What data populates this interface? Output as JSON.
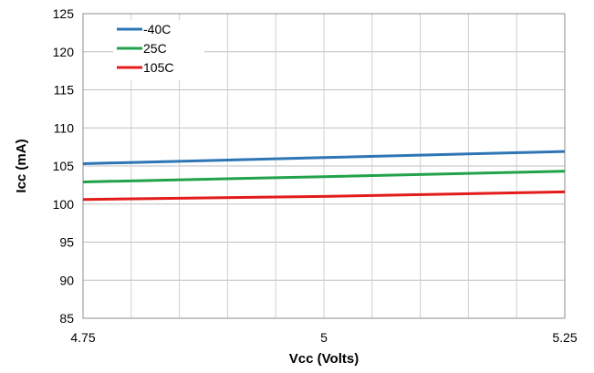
{
  "chart_data": {
    "type": "line",
    "xlabel": "Vcc (Volts)",
    "ylabel": "Icc (mA)",
    "xlim": [
      4.75,
      5.25
    ],
    "ylim": [
      85,
      125
    ],
    "x_ticks": [
      4.75,
      5,
      5.25
    ],
    "x_tick_labels": [
      "4.75",
      "5",
      "5.25"
    ],
    "y_ticks": [
      85,
      90,
      95,
      100,
      105,
      110,
      115,
      120,
      125
    ],
    "y_tick_labels": [
      "85",
      "90",
      "95",
      "100",
      "105",
      "110",
      "115",
      "120",
      "125"
    ],
    "grid": true,
    "legend_position": "top-left",
    "series": [
      {
        "name": "-40C",
        "color": "#2E75B6",
        "x": [
          4.75,
          5.0,
          5.25
        ],
        "values": [
          105.3,
          106.1,
          106.9
        ]
      },
      {
        "name": "25C",
        "color": "#22A249",
        "x": [
          4.75,
          5.0,
          5.25
        ],
        "values": [
          102.9,
          103.6,
          104.3
        ]
      },
      {
        "name": "105C",
        "color": "#E31B1B",
        "x": [
          4.75,
          5.0,
          5.25
        ],
        "values": [
          100.6,
          101.0,
          101.6
        ]
      }
    ]
  }
}
